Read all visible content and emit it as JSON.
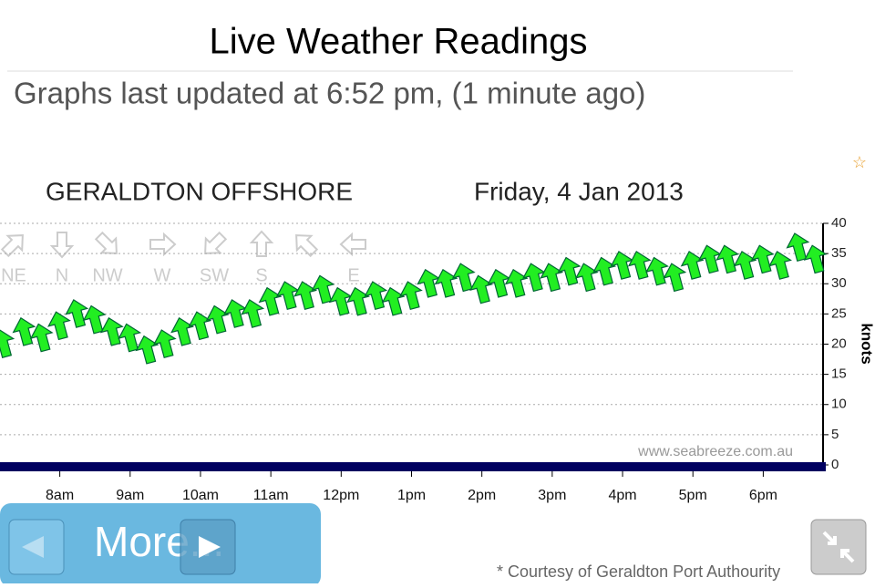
{
  "header": {
    "title": "Live Weather Readings",
    "subtitle": "Graphs last updated at 6:52 pm, (1 minute ago)"
  },
  "chart_data": {
    "type": "arrows",
    "title": "GERALDTON OFFSHORE",
    "date": "Friday, 4 Jan 2013",
    "y_label": "knots",
    "watermark": "www.seabreeze.com.au",
    "directions": [
      "NE",
      "N",
      "NW",
      "W",
      "SW",
      "S",
      null,
      "E"
    ],
    "xlim": [
      7.15,
      18.85
    ],
    "xticks": [
      {
        "value": 8,
        "label": "8am"
      },
      {
        "value": 9,
        "label": "9am"
      },
      {
        "value": 10,
        "label": "10am"
      },
      {
        "value": 11,
        "label": "11am"
      },
      {
        "value": 12,
        "label": "12pm"
      },
      {
        "value": 13,
        "label": "1pm"
      },
      {
        "value": 14,
        "label": "2pm"
      },
      {
        "value": 15,
        "label": "3pm"
      },
      {
        "value": 16,
        "label": "4pm"
      },
      {
        "value": 17,
        "label": "5pm"
      },
      {
        "value": 18,
        "label": "6pm"
      }
    ],
    "ylim": [
      0,
      40
    ],
    "yticks": [
      0,
      5,
      10,
      15,
      20,
      25,
      30,
      35,
      40
    ],
    "grid": true,
    "color": "#22ee22",
    "x": [
      7.2,
      7.5,
      7.75,
      8.0,
      8.25,
      8.5,
      8.75,
      9.0,
      9.25,
      9.5,
      9.75,
      10.0,
      10.25,
      10.5,
      10.75,
      11.0,
      11.25,
      11.5,
      11.75,
      12.0,
      12.25,
      12.5,
      12.75,
      13.0,
      13.25,
      13.5,
      13.75,
      14.0,
      14.25,
      14.5,
      14.75,
      15.0,
      15.25,
      15.5,
      15.75,
      16.0,
      16.25,
      16.5,
      16.75,
      17.0,
      17.25,
      17.5,
      17.75,
      18.0,
      18.25,
      18.5,
      18.75
    ],
    "values": [
      20,
      22,
      21,
      23,
      25,
      24,
      22,
      21,
      19,
      20,
      22,
      23,
      24,
      25,
      25,
      27,
      28,
      28,
      29,
      27,
      27,
      28,
      27,
      28,
      30,
      30,
      31,
      29,
      30,
      30,
      31,
      31,
      32,
      31,
      32,
      33,
      33,
      32,
      31,
      33,
      34,
      34,
      33,
      34,
      33,
      36,
      34
    ]
  },
  "footer": {
    "button": "More...",
    "credit": "* Courtesy of Geraldton Port Authourity"
  }
}
